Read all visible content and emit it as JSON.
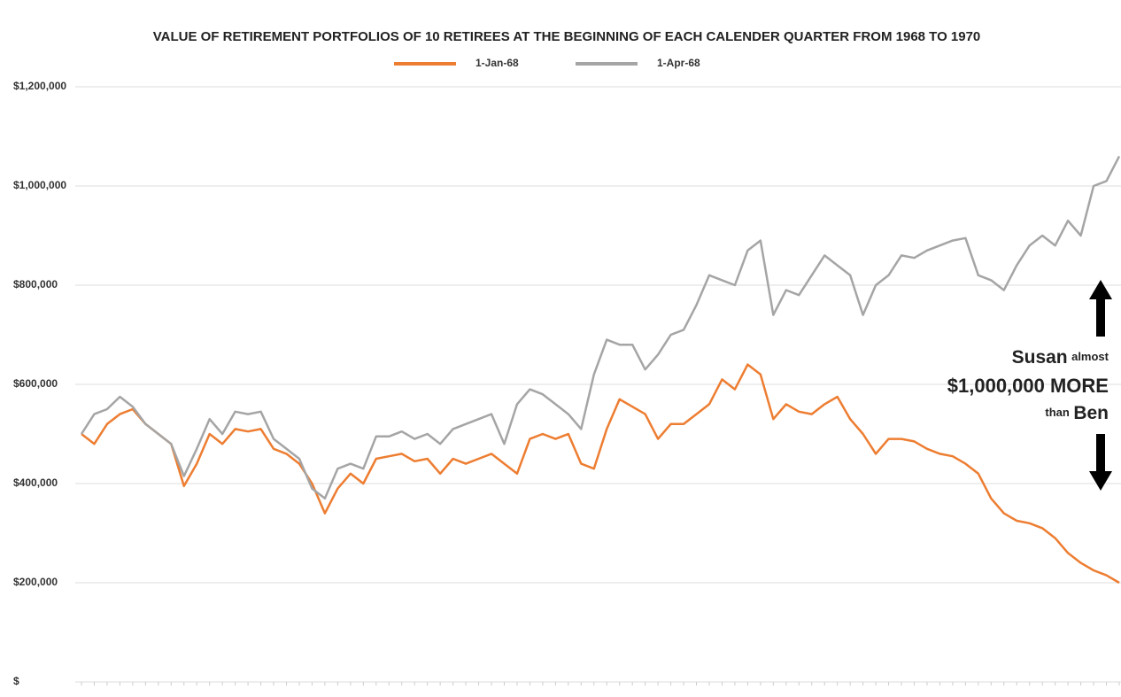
{
  "chart_data": {
    "type": "line",
    "title": "VALUE OF RETIREMENT PORTFOLIOS OF 10 RETIREES AT THE BEGINNING OF EACH CALENDER QUARTER FROM 1968 TO 1970",
    "categories": [
      null,
      null,
      null,
      null,
      null,
      null,
      null,
      null,
      null,
      null,
      null,
      null,
      null,
      null,
      null,
      null,
      null,
      null,
      null,
      null,
      null,
      null,
      null,
      null,
      null,
      null,
      null,
      null,
      null,
      null,
      null,
      null,
      null,
      null,
      null,
      null,
      null,
      null,
      null,
      null,
      null,
      null,
      null,
      null,
      null,
      null,
      null,
      null,
      null,
      null,
      null,
      null,
      null,
      null,
      null,
      null,
      null,
      null,
      null,
      null,
      null,
      null,
      null,
      null,
      null,
      null,
      null,
      null,
      null,
      null,
      null,
      null,
      null,
      null,
      null,
      null,
      null,
      null,
      null,
      null,
      null,
      null
    ],
    "series": [
      {
        "name": "1-Jan-68",
        "color": "#ed7d31",
        "values": [
          500000,
          480000,
          520000,
          540000,
          550000,
          520000,
          500000,
          480000,
          395000,
          440000,
          500000,
          480000,
          510000,
          505000,
          510000,
          470000,
          460000,
          440000,
          400000,
          340000,
          390000,
          420000,
          400000,
          450000,
          455000,
          460000,
          445000,
          450000,
          420000,
          450000,
          440000,
          450000,
          460000,
          440000,
          420000,
          490000,
          500000,
          490000,
          500000,
          440000,
          430000,
          510000,
          570000,
          555000,
          540000,
          490000,
          520000,
          520000,
          540000,
          560000,
          610000,
          590000,
          640000,
          620000,
          530000,
          560000,
          545000,
          540000,
          560000,
          575000,
          530000,
          500000,
          460000,
          490000,
          490000,
          485000,
          470000,
          460000,
          455000,
          440000,
          420000,
          370000,
          340000,
          325000,
          320000,
          310000,
          290000,
          260000,
          240000,
          225000,
          215000,
          200000
        ]
      },
      {
        "name": "1-Apr-68",
        "color": "#a5a5a5",
        "values": [
          500000,
          540000,
          550000,
          575000,
          555000,
          520000,
          500000,
          480000,
          415000,
          470000,
          530000,
          500000,
          545000,
          540000,
          545000,
          490000,
          470000,
          450000,
          390000,
          370000,
          430000,
          440000,
          430000,
          495000,
          495000,
          505000,
          490000,
          500000,
          480000,
          510000,
          520000,
          530000,
          540000,
          480000,
          560000,
          590000,
          580000,
          560000,
          540000,
          510000,
          620000,
          690000,
          680000,
          680000,
          630000,
          660000,
          700000,
          710000,
          760000,
          820000,
          810000,
          800000,
          870000,
          890000,
          740000,
          790000,
          780000,
          820000,
          860000,
          840000,
          820000,
          740000,
          800000,
          820000,
          860000,
          855000,
          870000,
          880000,
          890000,
          895000,
          820000,
          810000,
          790000,
          840000,
          880000,
          900000,
          880000,
          930000,
          900000,
          1000000,
          1010000,
          1060000
        ]
      }
    ],
    "ylim": [
      0,
      1200000
    ],
    "yticks": [
      {
        "value": 0,
        "label": "$"
      },
      {
        "value": 200000,
        "label": "$200,000"
      },
      {
        "value": 400000,
        "label": "$400,000"
      },
      {
        "value": 600000,
        "label": "$600,000"
      },
      {
        "value": 800000,
        "label": "$800,000"
      },
      {
        "value": 1000000,
        "label": "$1,000,000"
      },
      {
        "value": 1200000,
        "label": "$1,200,000"
      }
    ],
    "grid": true,
    "legend": "top",
    "annotations": [
      "Susan",
      "almost",
      "$1,000,000 MORE",
      "than",
      "Ben"
    ]
  }
}
